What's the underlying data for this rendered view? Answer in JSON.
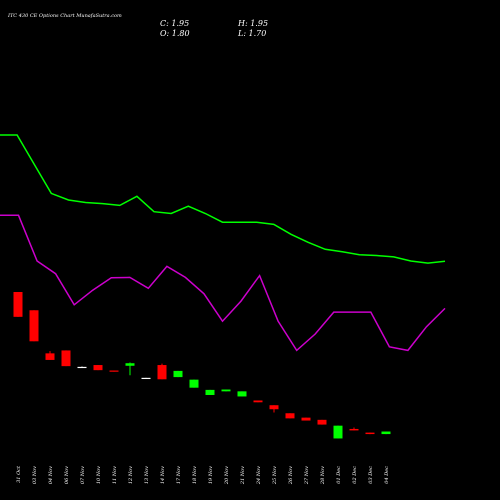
{
  "chart_data": {
    "type": "candlestick",
    "title": "ITC 430  CE Options Chart MunafaSutra.com",
    "ohlc_readout": {
      "c": "C: 1.95",
      "h": "H: 1.95",
      "o": "O: 1.80",
      "l": "L: 1.70"
    },
    "colors": {
      "up": "#00ff00",
      "down": "#ff0000",
      "flat": "#ffffff",
      "line_upper": "#00ff00",
      "line_lower": "#cc00cc",
      "background": "#000000",
      "text": "#ffffff"
    },
    "categories": [
      "31 Oct",
      "03 Nov",
      "04 Nov",
      "06 Nov",
      "07 Nov",
      "10 Nov",
      "11 Nov",
      "12 Nov",
      "13 Nov",
      "14 Nov",
      "17 Nov",
      "18 Nov",
      "19 Nov",
      "20 Nov",
      "21 Nov",
      "24 Nov",
      "25 Nov",
      "26 Nov",
      "27 Nov",
      "28 Nov",
      "01 Dec",
      "02 Dec",
      "03 Dec",
      "04 Dec"
    ],
    "candles": [
      {
        "o": 23.0,
        "c": 16.2,
        "h": 23.0,
        "l": 16.2
      },
      {
        "o": 18.0,
        "c": 9.5,
        "h": 18.0,
        "l": 9.5
      },
      {
        "o": 6.2,
        "c": 4.4,
        "h": 6.8,
        "l": 4.4
      },
      {
        "o": 7.0,
        "c": 2.7,
        "h": 7.0,
        "l": 2.7
      },
      {
        "o": 2.5,
        "c": 2.4,
        "h": 2.6,
        "l": 2.3
      },
      {
        "o": 3.0,
        "c": 1.6,
        "h": 3.0,
        "l": 1.6
      },
      {
        "o": 1.5,
        "c": 1.2,
        "h": 1.5,
        "l": 1.2
      },
      {
        "o": 2.8,
        "c": 3.5,
        "h": 3.7,
        "l": 0.2
      },
      {
        "o": -0.5,
        "c": -0.6,
        "h": -0.5,
        "l": -0.6
      },
      {
        "o": 3.0,
        "c": -0.9,
        "h": 3.4,
        "l": -0.9
      },
      {
        "o": -0.3,
        "c": 1.4,
        "h": 1.4,
        "l": -0.3
      },
      {
        "o": -3.2,
        "c": -1.0,
        "h": -1.0,
        "l": -3.2
      },
      {
        "o": -5.2,
        "c": -3.8,
        "h": -3.8,
        "l": -5.2
      },
      {
        "o": -4.2,
        "c": -3.7,
        "h": -3.7,
        "l": -4.2
      },
      {
        "o": -5.6,
        "c": -4.2,
        "h": -4.2,
        "l": -5.6
      },
      {
        "o": -6.7,
        "c": -7.2,
        "h": -6.7,
        "l": -7.2
      },
      {
        "o": -8.0,
        "c": -9.1,
        "h": -8.0,
        "l": -10.0
      },
      {
        "o": -10.2,
        "c": -11.6,
        "h": -10.2,
        "l": -11.6
      },
      {
        "o": -11.4,
        "c": -12.2,
        "h": -11.4,
        "l": -12.2
      },
      {
        "o": -12.0,
        "c": -13.3,
        "h": -12.0,
        "l": -13.3
      },
      {
        "o": -17.1,
        "c": -13.6,
        "h": -13.6,
        "l": -17.1
      },
      {
        "o": -14.5,
        "c": -14.9,
        "h": -14.1,
        "l": -14.9
      },
      {
        "o": -15.5,
        "c": -15.9,
        "h": -15.5,
        "l": -15.9
      },
      {
        "o": -15.9,
        "c": -15.2,
        "h": -15.2,
        "l": -15.9
      }
    ],
    "line_upper": [
      66.0,
      66.0,
      58.0,
      50.0,
      48.2,
      47.5,
      47.2,
      46.7,
      49.2,
      45.0,
      44.5,
      46.5,
      44.5,
      42.1,
      42.1,
      42.1,
      41.5,
      38.8,
      36.6,
      34.7,
      34.0,
      33.2,
      33.0,
      32.6,
      31.5,
      30.9,
      31.4
    ],
    "line_lower": [
      44.0,
      44.0,
      31.5,
      28.0,
      19.5,
      23.5,
      26.9,
      27.0,
      24.0,
      30.0,
      27.0,
      22.5,
      15.0,
      20.5,
      27.5,
      15.0,
      7.0,
      11.5,
      17.5,
      17.5,
      17.5,
      8.0,
      7.0,
      13.5,
      18.5
    ],
    "ylim": [
      -23,
      92
    ]
  }
}
